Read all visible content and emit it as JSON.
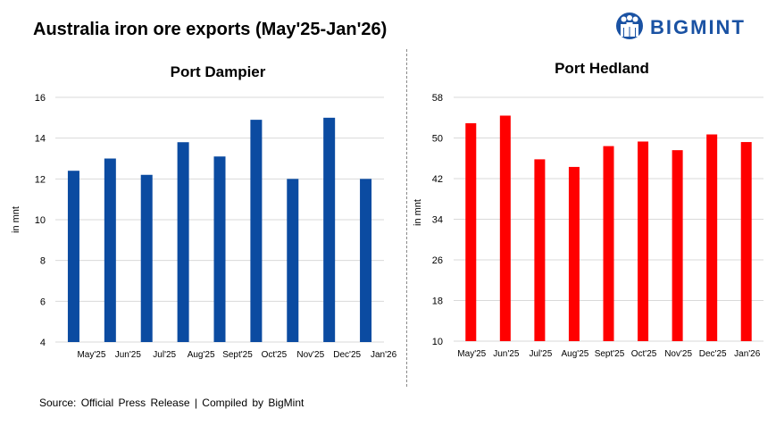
{
  "header": {
    "title": "Australia iron ore exports (May'25-Jan'26)",
    "brand": "BIGMINT",
    "brand_color": "#1a52a3"
  },
  "footer": {
    "source": "Source:  Official Press Release  | Compiled  by BigMint"
  },
  "chart_data": [
    {
      "type": "bar",
      "title": "Port Dampier",
      "xlabel": "",
      "ylabel": "in mnt",
      "categories": [
        "May'25",
        "Jun'25",
        "Jul'25",
        "Aug'25",
        "Sept'25",
        "Oct'25",
        "Nov'25",
        "Dec'25",
        "Jan'26"
      ],
      "values": [
        12.4,
        13.0,
        12.2,
        13.8,
        13.1,
        14.9,
        12.0,
        15.0,
        12.0
      ],
      "ylim": [
        4,
        16
      ],
      "yticks": [
        4,
        6,
        8,
        10,
        12,
        14,
        16
      ],
      "color": "#0b4ba1",
      "grid": true
    },
    {
      "type": "bar",
      "title": "Port Hedland",
      "xlabel": "",
      "ylabel": "in mnt",
      "categories": [
        "May'25",
        "Jun'25",
        "Jul'25",
        "Aug'25",
        "Sept'25",
        "Oct'25",
        "Nov'25",
        "Dec'25",
        "Jan'26"
      ],
      "values": [
        52.9,
        54.4,
        45.8,
        44.3,
        48.4,
        49.3,
        47.6,
        50.7,
        49.2
      ],
      "ylim": [
        10,
        58
      ],
      "yticks": [
        10,
        18,
        26,
        34,
        42,
        50,
        58
      ],
      "color": "#ff0000",
      "grid": true
    }
  ]
}
